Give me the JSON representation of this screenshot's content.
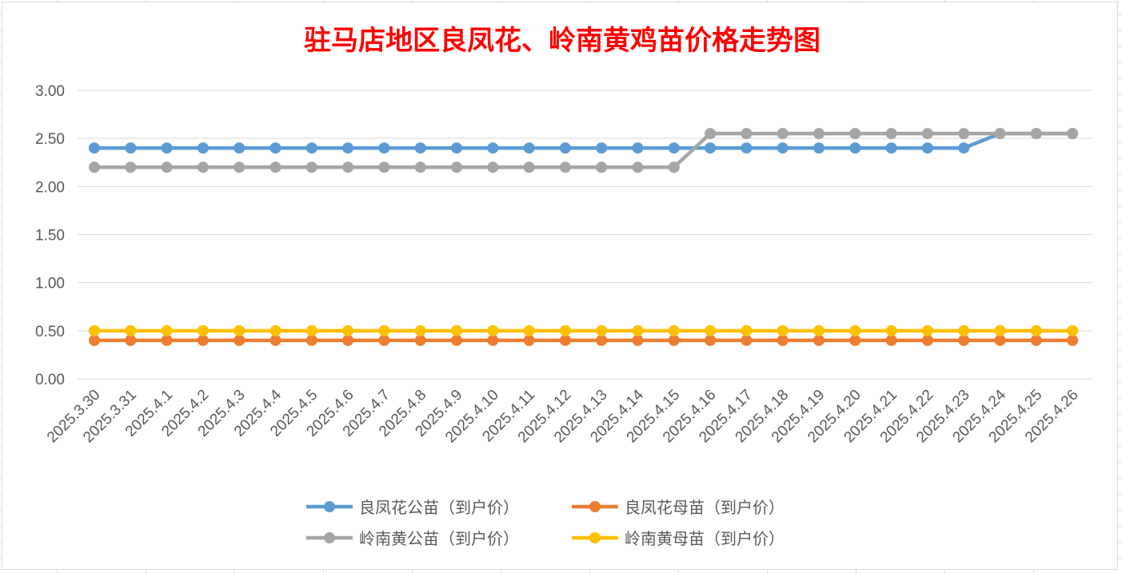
{
  "chart_data": {
    "type": "line",
    "title": "驻马店地区良凤花、岭南黄鸡苗价格走势图",
    "xlabel": "",
    "ylabel": "",
    "ylim": [
      0,
      3
    ],
    "yticks": [
      "0.00",
      "0.50",
      "1.00",
      "1.50",
      "2.00",
      "2.50",
      "3.00"
    ],
    "grid": "horizontal",
    "legend_position": "bottom",
    "categories": [
      "2025.3.30",
      "2025.3.31",
      "2025.4.1",
      "2025.4.2",
      "2025.4.3",
      "2025.4.4",
      "2025.4.5",
      "2025.4.6",
      "2025.4.7",
      "2025.4.8",
      "2025.4.9",
      "2025.4.10",
      "2025.4.11",
      "2025.4.12",
      "2025.4.13",
      "2025.4.14",
      "2025.4.15",
      "2025.4.16",
      "2025.4.17",
      "2025.4.18",
      "2025.4.19",
      "2025.4.20",
      "2025.4.21",
      "2025.4.22",
      "2025.4.23",
      "2025.4.24",
      "2025.4.25",
      "2025.4.26"
    ],
    "series": [
      {
        "name": "良凤花公苗（到户价）",
        "color": "#5b9bd5",
        "values": [
          2.4,
          2.4,
          2.4,
          2.4,
          2.4,
          2.4,
          2.4,
          2.4,
          2.4,
          2.4,
          2.4,
          2.4,
          2.4,
          2.4,
          2.4,
          2.4,
          2.4,
          2.4,
          2.4,
          2.4,
          2.4,
          2.4,
          2.4,
          2.4,
          2.4,
          2.55,
          2.55,
          2.55
        ]
      },
      {
        "name": "良凤花母苗（到户价）",
        "color": "#ed7d31",
        "values": [
          0.4,
          0.4,
          0.4,
          0.4,
          0.4,
          0.4,
          0.4,
          0.4,
          0.4,
          0.4,
          0.4,
          0.4,
          0.4,
          0.4,
          0.4,
          0.4,
          0.4,
          0.4,
          0.4,
          0.4,
          0.4,
          0.4,
          0.4,
          0.4,
          0.4,
          0.4,
          0.4,
          0.4
        ]
      },
      {
        "name": "岭南黄公苗（到户价）",
        "color": "#a5a5a5",
        "values": [
          2.2,
          2.2,
          2.2,
          2.2,
          2.2,
          2.2,
          2.2,
          2.2,
          2.2,
          2.2,
          2.2,
          2.2,
          2.2,
          2.2,
          2.2,
          2.2,
          2.2,
          2.55,
          2.55,
          2.55,
          2.55,
          2.55,
          2.55,
          2.55,
          2.55,
          2.55,
          2.55,
          2.55
        ]
      },
      {
        "name": "岭南黄母苗（到户价）",
        "color": "#ffc000",
        "values": [
          0.5,
          0.5,
          0.5,
          0.5,
          0.5,
          0.5,
          0.5,
          0.5,
          0.5,
          0.5,
          0.5,
          0.5,
          0.5,
          0.5,
          0.5,
          0.5,
          0.5,
          0.5,
          0.5,
          0.5,
          0.5,
          0.5,
          0.5,
          0.5,
          0.5,
          0.5,
          0.5,
          0.5
        ]
      }
    ],
    "legend_order": [
      0,
      1,
      2,
      3
    ]
  }
}
